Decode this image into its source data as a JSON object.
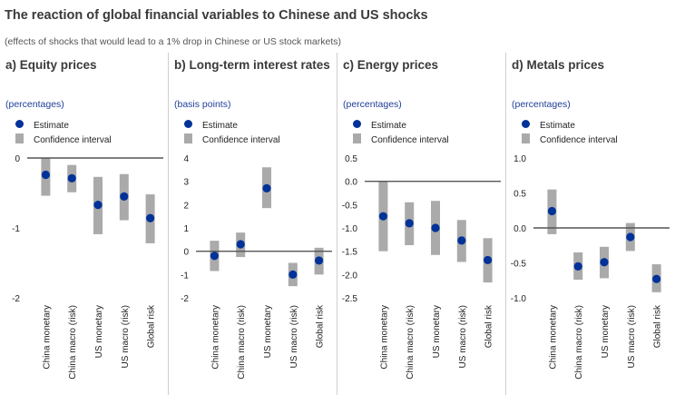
{
  "header": {
    "title": "The reaction of global financial variables to Chinese and US shocks",
    "subtitle": "(effects of shocks that would lead to a 1% drop in Chinese or US stock markets)"
  },
  "legend": {
    "estimate": "Estimate",
    "ci": "Confidence interval"
  },
  "colors": {
    "estimate": "#003299",
    "interval": "#aaaaaa",
    "zero_line": "#555555"
  },
  "chart_data": [
    {
      "type": "scatter",
      "title": "a) Equity prices",
      "unit": "(percentages)",
      "categories": [
        "China monetary",
        "China macro (risk)",
        "US monetary",
        "US macro (risk)",
        "Global risk"
      ],
      "ylim": [
        -2,
        0
      ],
      "yticks": [
        0,
        -1,
        -2
      ],
      "ytick_labels": [
        "0",
        "-1",
        "-2"
      ],
      "series": [
        {
          "name": "Estimate",
          "values": [
            -0.24,
            -0.29,
            -0.67,
            -0.55,
            -0.86
          ]
        },
        {
          "name": "Confidence interval",
          "low": [
            -0.54,
            -0.49,
            -1.09,
            -0.89,
            -1.22
          ],
          "high": [
            0.0,
            -0.1,
            -0.27,
            -0.23,
            -0.52
          ]
        }
      ]
    },
    {
      "type": "scatter",
      "title": "b) Long-term interest rates",
      "unit": "(basis points)",
      "categories": [
        "China monetary",
        "China macro (risk)",
        "US monetary",
        "US macro (risk)",
        "Global risk"
      ],
      "ylim": [
        -2,
        4
      ],
      "yticks": [
        4,
        3,
        2,
        1,
        0,
        -1,
        -2
      ],
      "ytick_labels": [
        "4",
        "3",
        "2",
        "1",
        "0",
        "-1",
        "-2"
      ],
      "series": [
        {
          "name": "Estimate",
          "values": [
            -0.2,
            0.3,
            2.7,
            -1.0,
            -0.4
          ]
        },
        {
          "name": "Confidence interval",
          "low": [
            -0.85,
            -0.25,
            1.85,
            -1.5,
            -1.0
          ],
          "high": [
            0.45,
            0.8,
            3.6,
            -0.5,
            0.15
          ]
        }
      ]
    },
    {
      "type": "scatter",
      "title": "c) Energy prices",
      "unit": "(percentages)",
      "categories": [
        "China monetary",
        "China macro (risk)",
        "US monetary",
        "US macro (risk)",
        "Global risk"
      ],
      "ylim": [
        -2.5,
        0.5
      ],
      "yticks": [
        0.5,
        0.0,
        -0.5,
        -1.0,
        -1.5,
        -2.0,
        -2.5
      ],
      "ytick_labels": [
        "0.5",
        "0.0",
        "-0.5",
        "-1.0",
        "-1.5",
        "-2.0",
        "-2.5"
      ],
      "series": [
        {
          "name": "Estimate",
          "values": [
            -0.75,
            -0.9,
            -1.0,
            -1.27,
            -1.69
          ]
        },
        {
          "name": "Confidence interval",
          "low": [
            -1.5,
            -1.37,
            -1.58,
            -1.73,
            -2.17
          ],
          "high": [
            0.0,
            -0.45,
            -0.42,
            -0.83,
            -1.22
          ]
        }
      ]
    },
    {
      "type": "scatter",
      "title": "d) Metals prices",
      "unit": "(percentages)",
      "categories": [
        "China monetary",
        "China macro (risk)",
        "US monetary",
        "US macro (risk)",
        "Global risk"
      ],
      "ylim": [
        -1.0,
        1.0
      ],
      "yticks": [
        1.0,
        0.5,
        0.0,
        -0.5,
        -1.0
      ],
      "ytick_labels": [
        "1.0",
        "0.5",
        "0.0",
        "-0.5",
        "-1.0"
      ],
      "series": [
        {
          "name": "Estimate",
          "values": [
            0.24,
            -0.55,
            -0.49,
            -0.13,
            -0.73
          ]
        },
        {
          "name": "Confidence interval",
          "low": [
            -0.09,
            -0.74,
            -0.72,
            -0.33,
            -0.92
          ],
          "high": [
            0.55,
            -0.35,
            -0.27,
            0.07,
            -0.52
          ]
        }
      ]
    }
  ]
}
